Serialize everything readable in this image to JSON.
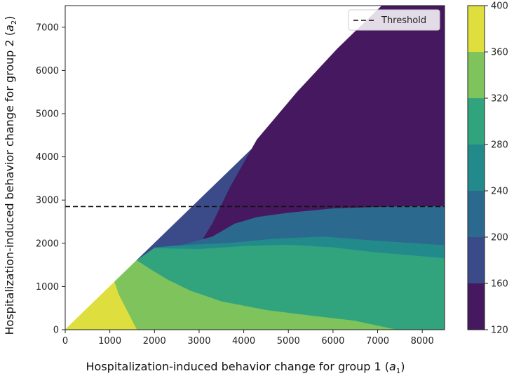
{
  "chart_data": {
    "type": "contour",
    "title": "",
    "xlabel_main": "Hospitalization-induced behavior change for group 1 (",
    "xlabel_var": "a",
    "xlabel_sub": "1",
    "xlabel_end": ")",
    "ylabel_main": "Hospitalization-induced behavior change for group 2 (",
    "ylabel_var": "a",
    "ylabel_sub": "2",
    "ylabel_end": ")",
    "xlim": [
      0,
      8500
    ],
    "ylim": [
      0,
      7500
    ],
    "xticks": [
      "0",
      "1000",
      "2000",
      "3000",
      "4000",
      "5000",
      "6000",
      "7000",
      "8000"
    ],
    "xtick_values": [
      0,
      1000,
      2000,
      3000,
      4000,
      5000,
      6000,
      7000,
      8000
    ],
    "yticks": [
      "0",
      "1000",
      "2000",
      "3000",
      "4000",
      "5000",
      "6000",
      "7000"
    ],
    "ytick_values": [
      0,
      1000,
      2000,
      3000,
      4000,
      5000,
      6000,
      7000
    ],
    "threshold": {
      "label": "Threshold",
      "y": 2850,
      "style": "dashed"
    },
    "legend_position": "top-right",
    "colorbar": {
      "ticks": [
        "120",
        "160",
        "200",
        "240",
        "280",
        "320",
        "360",
        "400"
      ],
      "tick_values": [
        120,
        160,
        200,
        240,
        280,
        320,
        360,
        400
      ],
      "levels": [
        {
          "from": 120,
          "to": 160,
          "color": "#46185f"
        },
        {
          "from": 160,
          "to": 200,
          "color": "#3b4b8a"
        },
        {
          "from": 200,
          "to": 240,
          "color": "#2b6a8e"
        },
        {
          "from": 240,
          "to": 280,
          "color": "#238a8c"
        },
        {
          "from": 280,
          "to": 320,
          "color": "#31a47e"
        },
        {
          "from": 320,
          "to": 360,
          "color": "#7ec35b"
        },
        {
          "from": 360,
          "to": 400,
          "color": "#dede3e"
        }
      ]
    },
    "regions": [
      {
        "name": "region-160-200",
        "level": 1,
        "points": [
          [
            1600,
            1600
          ],
          [
            7500,
            7500
          ],
          [
            8500,
            7500
          ],
          [
            8500,
            2850
          ],
          [
            7500,
            2850
          ],
          [
            6000,
            2800
          ],
          [
            5000,
            2700
          ],
          [
            4300,
            2600
          ],
          [
            3800,
            2450
          ],
          [
            3300,
            2150
          ],
          [
            2600,
            1950
          ],
          [
            2000,
            1900
          ],
          [
            1600,
            1600
          ]
        ]
      },
      {
        "name": "region-120-160",
        "level": 0,
        "points": [
          [
            3000,
            1950
          ],
          [
            3300,
            2450
          ],
          [
            3700,
            3300
          ],
          [
            4300,
            4400
          ],
          [
            5200,
            5500
          ],
          [
            6100,
            6500
          ],
          [
            6800,
            7200
          ],
          [
            7100,
            7500
          ],
          [
            8500,
            7500
          ],
          [
            8500,
            2850
          ],
          [
            7500,
            2850
          ],
          [
            6000,
            2800
          ],
          [
            5000,
            2700
          ],
          [
            4300,
            2600
          ],
          [
            3800,
            2450
          ],
          [
            3300,
            2150
          ],
          [
            3000,
            1950
          ]
        ]
      },
      {
        "name": "region-200-240",
        "level": 2,
        "points": [
          [
            2600,
            1950
          ],
          [
            3300,
            2150
          ],
          [
            3800,
            2450
          ],
          [
            4300,
            2600
          ],
          [
            5000,
            2700
          ],
          [
            6000,
            2800
          ],
          [
            7500,
            2850
          ],
          [
            8500,
            2850
          ],
          [
            8500,
            1950
          ],
          [
            7000,
            2050
          ],
          [
            5800,
            2150
          ],
          [
            4700,
            2100
          ],
          [
            3700,
            2000
          ],
          [
            2600,
            1950
          ]
        ]
      },
      {
        "name": "region-240-280",
        "level": 3,
        "points": [
          [
            2000,
            1900
          ],
          [
            2600,
            1950
          ],
          [
            3700,
            2000
          ],
          [
            4700,
            2100
          ],
          [
            5800,
            2150
          ],
          [
            7000,
            2050
          ],
          [
            8500,
            1950
          ],
          [
            8500,
            1650
          ],
          [
            7000,
            1780
          ],
          [
            6000,
            1900
          ],
          [
            5000,
            1960
          ],
          [
            4000,
            1930
          ],
          [
            3000,
            1860
          ],
          [
            2000,
            1880
          ]
        ]
      },
      {
        "name": "region-280-320",
        "level": 4,
        "points": [
          [
            1600,
            1600
          ],
          [
            2000,
            1880
          ],
          [
            3000,
            1860
          ],
          [
            4000,
            1930
          ],
          [
            5000,
            1960
          ],
          [
            6000,
            1900
          ],
          [
            7000,
            1780
          ],
          [
            8500,
            1650
          ],
          [
            8500,
            0
          ],
          [
            7400,
            0
          ],
          [
            6500,
            200
          ],
          [
            5500,
            320
          ],
          [
            4500,
            450
          ],
          [
            3500,
            650
          ],
          [
            2800,
            900
          ],
          [
            2300,
            1150
          ],
          [
            1900,
            1400
          ],
          [
            1600,
            1600
          ]
        ]
      },
      {
        "name": "region-320-360",
        "level": 5,
        "points": [
          [
            1100,
            1100
          ],
          [
            1600,
            1600
          ],
          [
            1900,
            1400
          ],
          [
            2300,
            1150
          ],
          [
            2800,
            900
          ],
          [
            3500,
            650
          ],
          [
            4500,
            450
          ],
          [
            5500,
            320
          ],
          [
            6500,
            200
          ],
          [
            7400,
            0
          ],
          [
            1600,
            0
          ],
          [
            1400,
            400
          ],
          [
            1200,
            800
          ],
          [
            1100,
            1100
          ]
        ]
      },
      {
        "name": "region-360-400",
        "level": 6,
        "points": [
          [
            0,
            0
          ],
          [
            1100,
            1100
          ],
          [
            1200,
            800
          ],
          [
            1400,
            400
          ],
          [
            1600,
            0
          ],
          [
            0,
            0
          ]
        ]
      }
    ]
  }
}
